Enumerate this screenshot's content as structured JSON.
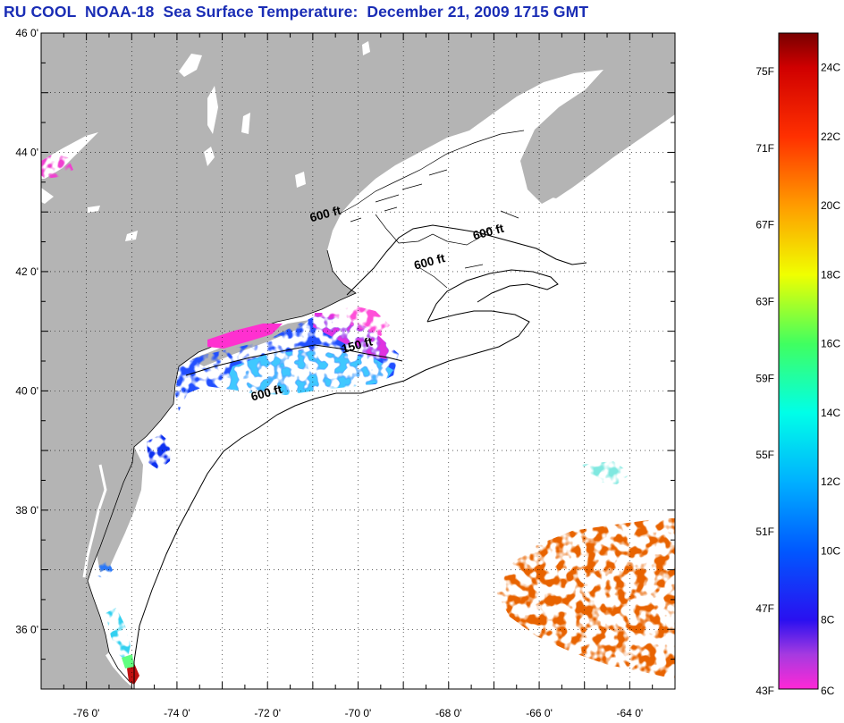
{
  "title": "RU COOL  NOAA-18  Sea Surface Temperature:  December 21, 2009 1715 GMT",
  "map": {
    "lat_range": [
      35,
      46
    ],
    "lon_range": [
      -77,
      -63
    ],
    "lat_labels": [
      "46 0'",
      "44 0'",
      "42 0'",
      "40 0'",
      "38 0'",
      "36 0'"
    ],
    "lon_labels": [
      "-76 0'",
      "-74 0'",
      "-72 0'",
      "-70 0'",
      "-68 0'",
      "-66 0'",
      "-64 0'"
    ],
    "land_color": "#b4b4b4",
    "ocean_color": "#ffffff",
    "contour_labels": [
      {
        "text": "600 ft",
        "lon": -70.7,
        "lat": 42.9
      },
      {
        "text": "600 ft",
        "lon": -67.1,
        "lat": 42.6
      },
      {
        "text": "600 ft",
        "lon": -68.4,
        "lat": 42.1
      },
      {
        "text": "150 ft",
        "lon": -70.0,
        "lat": 40.7
      },
      {
        "text": "600 ft",
        "lon": -72.0,
        "lat": 39.9
      }
    ]
  },
  "colorbar": {
    "min_c": 6,
    "max_c": 25,
    "celsius_labels": [
      "24C",
      "22C",
      "20C",
      "18C",
      "16C",
      "14C",
      "12C",
      "10C",
      "8C",
      "6C"
    ],
    "fahrenheit_labels": [
      "75F",
      "71F",
      "67F",
      "63F",
      "59F",
      "55F",
      "51F",
      "47F",
      "43F"
    ],
    "stops": [
      {
        "c": 6,
        "color": "#ff28d6"
      },
      {
        "c": 7,
        "color": "#a63ae0"
      },
      {
        "c": 8,
        "color": "#2a10f0"
      },
      {
        "c": 10,
        "color": "#0058ff"
      },
      {
        "c": 12,
        "color": "#00b0ff"
      },
      {
        "c": 14,
        "color": "#00ffe8"
      },
      {
        "c": 16,
        "color": "#40ff60"
      },
      {
        "c": 18,
        "color": "#f0ff00"
      },
      {
        "c": 20,
        "color": "#ff9c00"
      },
      {
        "c": 22,
        "color": "#ff3000"
      },
      {
        "c": 24,
        "color": "#d00000"
      },
      {
        "c": 25,
        "color": "#780000"
      }
    ]
  }
}
